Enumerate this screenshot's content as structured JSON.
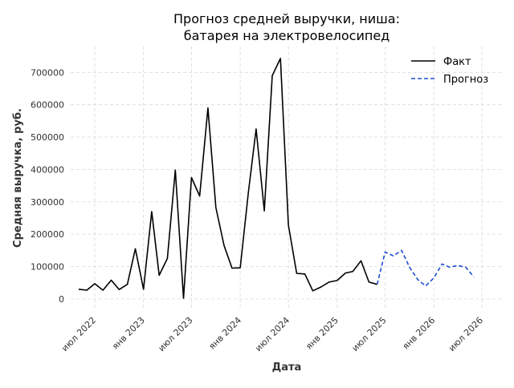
{
  "chart_data": {
    "type": "line",
    "title_lines": [
      "Прогноз средней выручки, ниша:",
      "батарея на электровелосипед"
    ],
    "xlabel": "Дата",
    "ylabel": "Средняя выручка, руб.",
    "ylim": [
      -30000,
      780000
    ],
    "xlim": [
      "2022-04-01",
      "2026-09-15"
    ],
    "y_ticks": [
      0,
      100000,
      200000,
      300000,
      400000,
      500000,
      600000,
      700000
    ],
    "x_ticks": [
      {
        "date": "2022-07-01",
        "label": "июл 2022"
      },
      {
        "date": "2023-01-01",
        "label": "янв 2023"
      },
      {
        "date": "2023-07-01",
        "label": "июл 2023"
      },
      {
        "date": "2024-01-01",
        "label": "янв 2024"
      },
      {
        "date": "2024-07-01",
        "label": "июл 2024"
      },
      {
        "date": "2025-01-01",
        "label": "янв 2025"
      },
      {
        "date": "2025-07-01",
        "label": "июл 2025"
      },
      {
        "date": "2026-01-01",
        "label": "янв 2026"
      },
      {
        "date": "2026-07-01",
        "label": "июл 2026"
      }
    ],
    "grid": true,
    "legend_position": "top-right",
    "series": [
      {
        "name": "Факт",
        "color": "#000000",
        "style": "solid",
        "points": [
          [
            "2022-05-01",
            30000
          ],
          [
            "2022-06-01",
            27000
          ],
          [
            "2022-07-01",
            47000
          ],
          [
            "2022-08-01",
            27000
          ],
          [
            "2022-09-01",
            58000
          ],
          [
            "2022-10-01",
            29000
          ],
          [
            "2022-11-01",
            45000
          ],
          [
            "2022-12-01",
            155000
          ],
          [
            "2023-01-01",
            30000
          ],
          [
            "2023-02-01",
            270000
          ],
          [
            "2023-03-01",
            73000
          ],
          [
            "2023-04-01",
            125000
          ],
          [
            "2023-05-01",
            398000
          ],
          [
            "2023-06-01",
            2000
          ],
          [
            "2023-07-01",
            375000
          ],
          [
            "2023-08-01",
            318000
          ],
          [
            "2023-09-01",
            590000
          ],
          [
            "2023-10-01",
            282000
          ],
          [
            "2023-11-01",
            165000
          ],
          [
            "2023-12-01",
            95000
          ],
          [
            "2024-01-01",
            96000
          ],
          [
            "2024-02-01",
            330000
          ],
          [
            "2024-03-01",
            525000
          ],
          [
            "2024-04-01",
            272000
          ],
          [
            "2024-05-01",
            690000
          ],
          [
            "2024-06-01",
            743000
          ],
          [
            "2024-07-01",
            228000
          ],
          [
            "2024-08-01",
            79000
          ],
          [
            "2024-09-01",
            77000
          ],
          [
            "2024-10-01",
            25000
          ],
          [
            "2024-11-01",
            37000
          ],
          [
            "2024-12-01",
            52000
          ],
          [
            "2025-01-01",
            57000
          ],
          [
            "2025-02-01",
            80000
          ],
          [
            "2025-03-01",
            85000
          ],
          [
            "2025-04-01",
            118000
          ],
          [
            "2025-05-01",
            52000
          ],
          [
            "2025-06-01",
            45000
          ]
        ]
      },
      {
        "name": "Прогноз",
        "color": "#1f4fd1",
        "style": "dashed",
        "points": [
          [
            "2025-06-01",
            45000
          ],
          [
            "2025-07-01",
            145000
          ],
          [
            "2025-08-01",
            133000
          ],
          [
            "2025-09-01",
            150000
          ],
          [
            "2025-10-01",
            98000
          ],
          [
            "2025-11-01",
            60000
          ],
          [
            "2025-12-01",
            40000
          ],
          [
            "2026-01-01",
            65000
          ],
          [
            "2026-02-01",
            108000
          ],
          [
            "2026-03-01",
            98000
          ],
          [
            "2026-04-01",
            103000
          ],
          [
            "2026-05-01",
            98000
          ],
          [
            "2026-06-01",
            68000
          ]
        ]
      }
    ]
  }
}
